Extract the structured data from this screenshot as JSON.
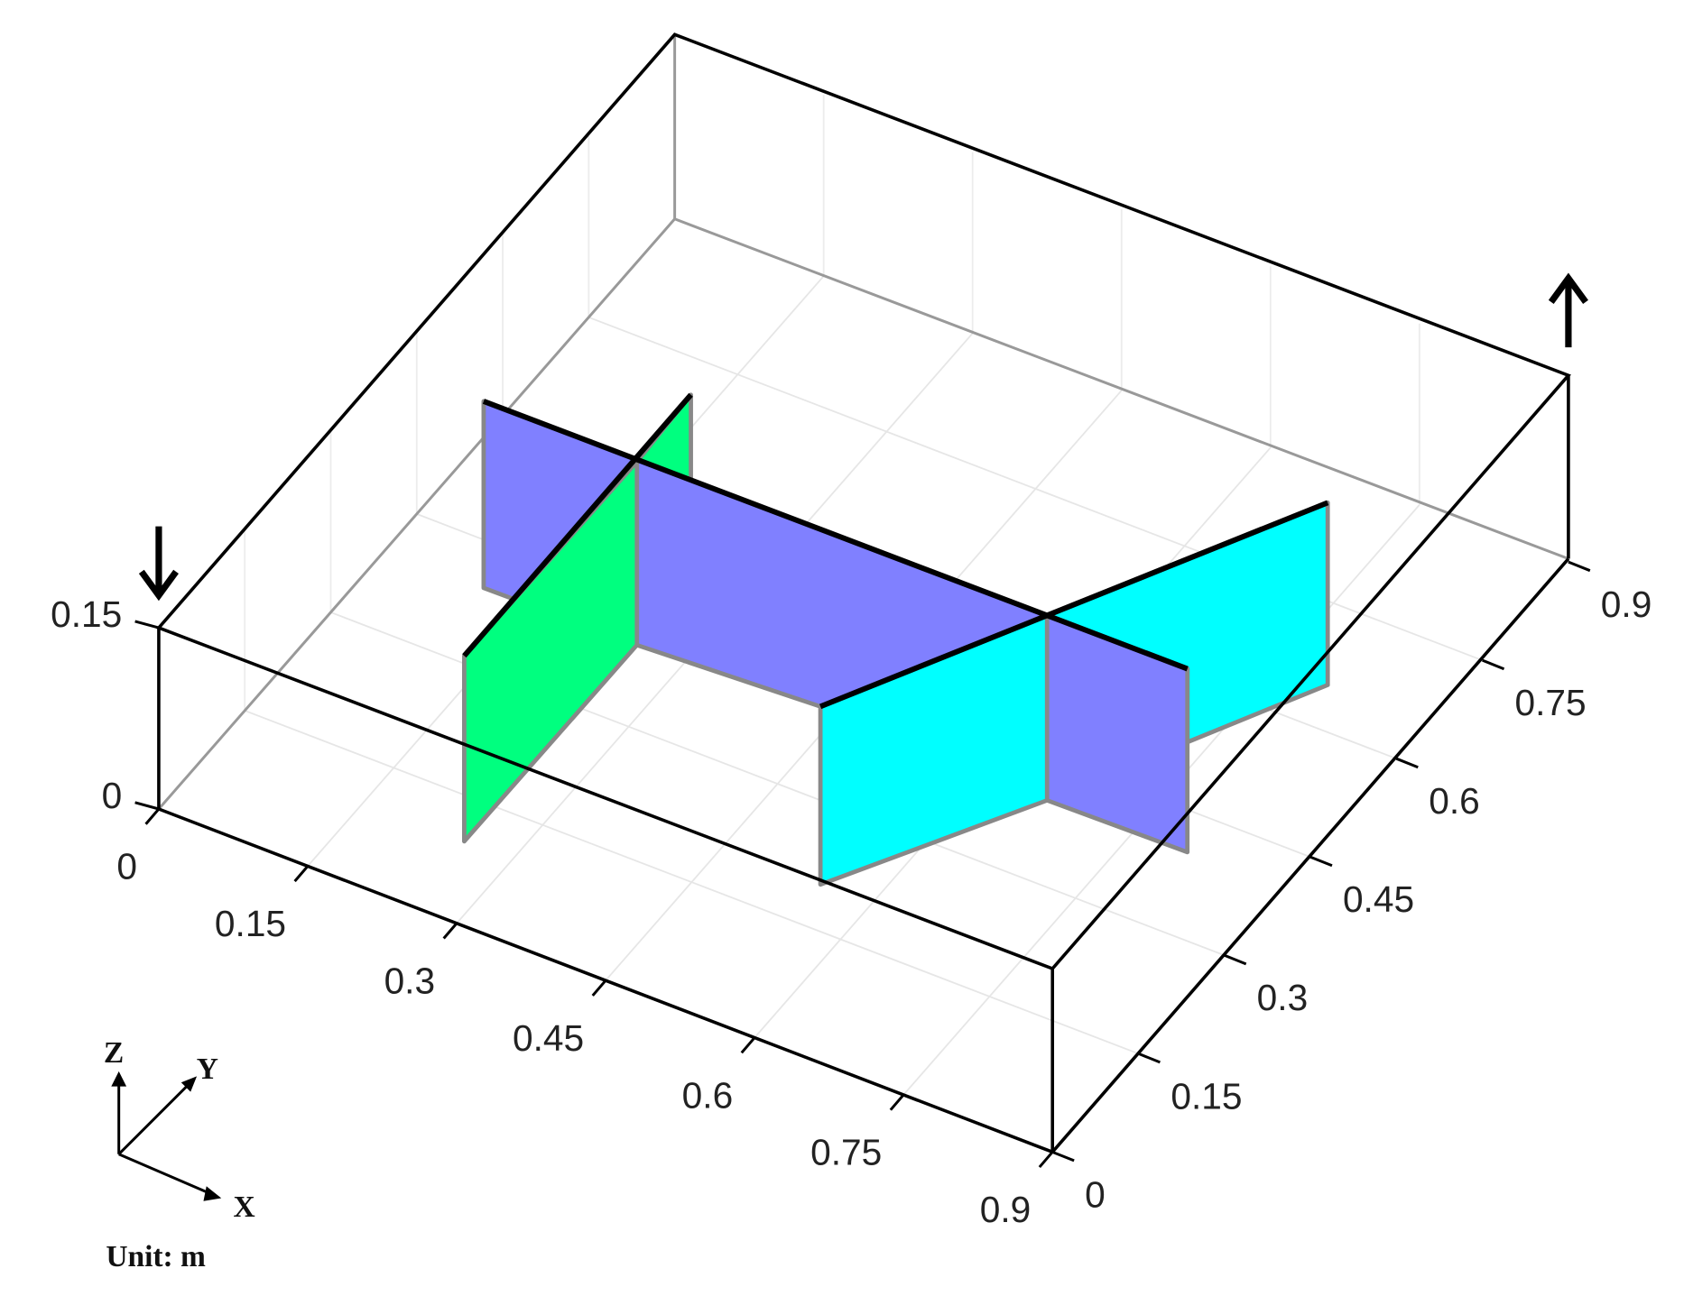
{
  "axes": {
    "x": {
      "ticks": [
        "0",
        "0.15",
        "0.3",
        "0.45",
        "0.6",
        "0.75",
        "0.9"
      ]
    },
    "y": {
      "ticks": [
        "0",
        "0.15",
        "0.3",
        "0.45",
        "0.6",
        "0.75",
        "0.9"
      ]
    },
    "z": {
      "ticks": [
        "0",
        "0.15"
      ]
    }
  },
  "triad": {
    "x": "X",
    "y": "Y",
    "z": "Z"
  },
  "unit": "Unit: m"
}
